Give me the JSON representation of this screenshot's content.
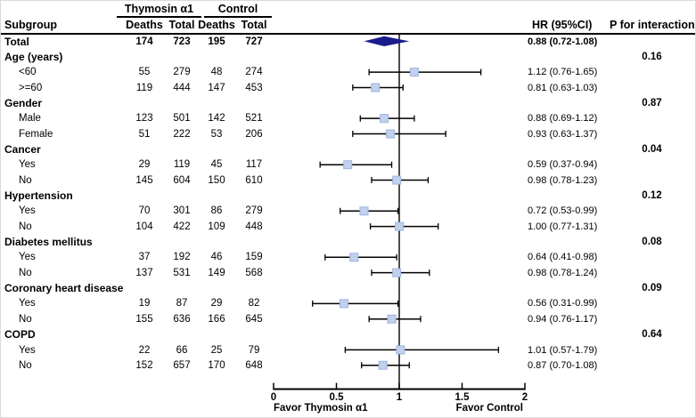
{
  "header": {
    "group1": "Thymosin α1",
    "group2": "Control",
    "col_subgroup": "Subgroup",
    "col_deaths": "Deaths",
    "col_total": "Total",
    "col_hr": "HR (95%CI)",
    "col_p": "P for interaction"
  },
  "colors": {
    "marker_fill": "#c1d0ee",
    "marker_stroke": "#9fb4dd",
    "diamond": "#1b1b8e",
    "line": "#000000"
  },
  "chart_data": {
    "type": "forest",
    "axis": {
      "min": 0,
      "max": 2,
      "tick_values": [
        0,
        0.5,
        1,
        1.5,
        2
      ],
      "tick_labels": [
        "0",
        "0.5",
        "1",
        "1.5",
        "2"
      ],
      "ref_line": 1,
      "label_left": "Favor Thymosin α1",
      "label_right": "Favor Control"
    },
    "rows": [
      {
        "label": "Total",
        "group": true,
        "deaths1": "174",
        "total1": "723",
        "deaths2": "195",
        "total2": "727",
        "hr_text": "0.88 (0.72-1.08)",
        "hr": 0.88,
        "lo": 0.72,
        "hi": 1.08,
        "marker": "diamond",
        "bold": true
      },
      {
        "label": "Age (years)",
        "group": true,
        "p": "0.16"
      },
      {
        "label": "<60",
        "deaths1": "55",
        "total1": "279",
        "deaths2": "48",
        "total2": "274",
        "hr_text": "1.12 (0.76-1.65)",
        "hr": 1.12,
        "lo": 0.76,
        "hi": 1.65,
        "marker": "square"
      },
      {
        "label": ">=60",
        "deaths1": "119",
        "total1": "444",
        "deaths2": "147",
        "total2": "453",
        "hr_text": "0.81 (0.63-1.03)",
        "hr": 0.81,
        "lo": 0.63,
        "hi": 1.03,
        "marker": "square"
      },
      {
        "label": "Gender",
        "group": true,
        "p": "0.87"
      },
      {
        "label": "Male",
        "deaths1": "123",
        "total1": "501",
        "deaths2": "142",
        "total2": "521",
        "hr_text": "0.88 (0.69-1.12)",
        "hr": 0.88,
        "lo": 0.69,
        "hi": 1.12,
        "marker": "square"
      },
      {
        "label": "Female",
        "deaths1": "51",
        "total1": "222",
        "deaths2": "53",
        "total2": "206",
        "hr_text": "0.93 (0.63-1.37)",
        "hr": 0.93,
        "lo": 0.63,
        "hi": 1.37,
        "marker": "square"
      },
      {
        "label": "Cancer",
        "group": true,
        "p": "0.04"
      },
      {
        "label": "Yes",
        "deaths1": "29",
        "total1": "119",
        "deaths2": "45",
        "total2": "117",
        "hr_text": "0.59 (0.37-0.94)",
        "hr": 0.59,
        "lo": 0.37,
        "hi": 0.94,
        "marker": "square"
      },
      {
        "label": "No",
        "deaths1": "145",
        "total1": "604",
        "deaths2": "150",
        "total2": "610",
        "hr_text": "0.98 (0.78-1.23)",
        "hr": 0.98,
        "lo": 0.78,
        "hi": 1.23,
        "marker": "square"
      },
      {
        "label": "Hypertension",
        "group": true,
        "p": "0.12"
      },
      {
        "label": "Yes",
        "deaths1": "70",
        "total1": "301",
        "deaths2": "86",
        "total2": "279",
        "hr_text": "0.72 (0.53-0.99)",
        "hr": 0.72,
        "lo": 0.53,
        "hi": 0.99,
        "marker": "square"
      },
      {
        "label": "No",
        "deaths1": "104",
        "total1": "422",
        "deaths2": "109",
        "total2": "448",
        "hr_text": "1.00 (0.77-1.31)",
        "hr": 1.0,
        "lo": 0.77,
        "hi": 1.31,
        "marker": "square"
      },
      {
        "label": "Diabetes mellitus",
        "group": true,
        "p": "0.08"
      },
      {
        "label": "Yes",
        "deaths1": "37",
        "total1": "192",
        "deaths2": "46",
        "total2": "159",
        "hr_text": "0.64 (0.41-0.98)",
        "hr": 0.64,
        "lo": 0.41,
        "hi": 0.98,
        "marker": "square"
      },
      {
        "label": "No",
        "deaths1": "137",
        "total1": "531",
        "deaths2": "149",
        "total2": "568",
        "hr_text": "0.98 (0.78-1.24)",
        "hr": 0.98,
        "lo": 0.78,
        "hi": 1.24,
        "marker": "square"
      },
      {
        "label": "Coronary heart disease",
        "group": true,
        "p": "0.09"
      },
      {
        "label": "Yes",
        "deaths1": "19",
        "total1": "87",
        "deaths2": "29",
        "total2": "82",
        "hr_text": "0.56 (0.31-0.99)",
        "hr": 0.56,
        "lo": 0.31,
        "hi": 0.99,
        "marker": "square"
      },
      {
        "label": "No",
        "deaths1": "155",
        "total1": "636",
        "deaths2": "166",
        "total2": "645",
        "hr_text": "0.94 (0.76-1.17)",
        "hr": 0.94,
        "lo": 0.76,
        "hi": 1.17,
        "marker": "square"
      },
      {
        "label": "COPD",
        "group": true,
        "p": "0.64"
      },
      {
        "label": "Yes",
        "deaths1": "22",
        "total1": "66",
        "deaths2": "25",
        "total2": "79",
        "hr_text": "1.01 (0.57-1.79)",
        "hr": 1.01,
        "lo": 0.57,
        "hi": 1.79,
        "marker": "square"
      },
      {
        "label": "No",
        "deaths1": "152",
        "total1": "657",
        "deaths2": "170",
        "total2": "648",
        "hr_text": "0.87 (0.70-1.08)",
        "hr": 0.87,
        "lo": 0.7,
        "hi": 1.08,
        "marker": "square"
      }
    ]
  }
}
